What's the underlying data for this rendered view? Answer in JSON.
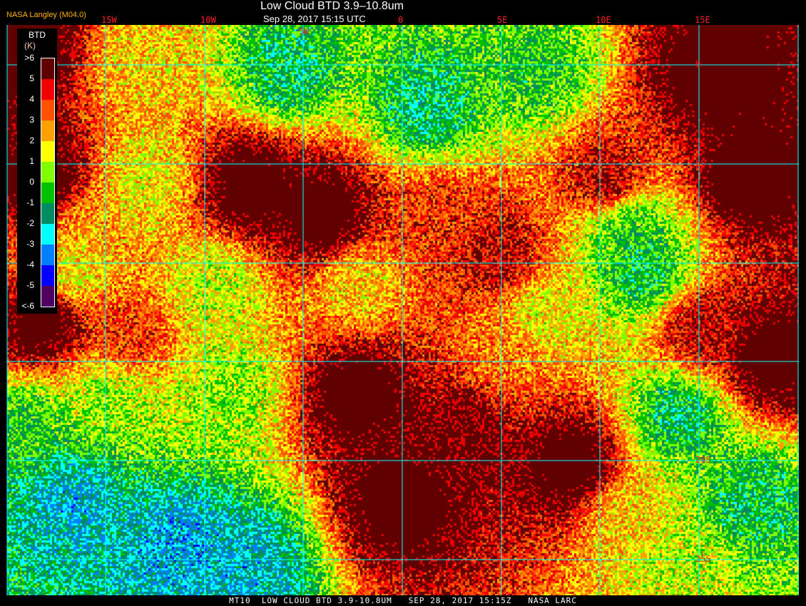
{
  "header": {
    "credit": "NASA Langley (M04.0)",
    "title": "Low Cloud BTD 3.9–10.8um",
    "datetime": "Sep 28, 2017 15:15 UTC"
  },
  "grid": {
    "line_color": "#00ffff",
    "label_color": "#ff2020",
    "longitudes": [
      "15W",
      "10W",
      "5W",
      "0",
      "5E",
      "10E",
      "15E"
    ],
    "latitudes": [
      "0",
      "5S",
      "10S",
      "15S",
      "20S",
      "25S"
    ]
  },
  "legend": {
    "title": "BTD",
    "unit": "(K)",
    "labels": [
      ">6",
      "5",
      "4",
      "3",
      "2",
      "1",
      "0",
      "-1",
      "-2",
      "-3",
      "-4",
      "-5",
      "<-6"
    ],
    "colors": [
      "#600000",
      "#f00000",
      "#ff5000",
      "#ffa000",
      "#ffff00",
      "#80ff00",
      "#00c000",
      "#008c60",
      "#00ffff",
      "#0080ff",
      "#0000ff",
      "#500060"
    ]
  },
  "footer": {
    "text": "MT10  LOW CLOUD BTD 3.9-10.8UM   SEP 28, 2017 15:15Z   NASA LARC"
  }
}
